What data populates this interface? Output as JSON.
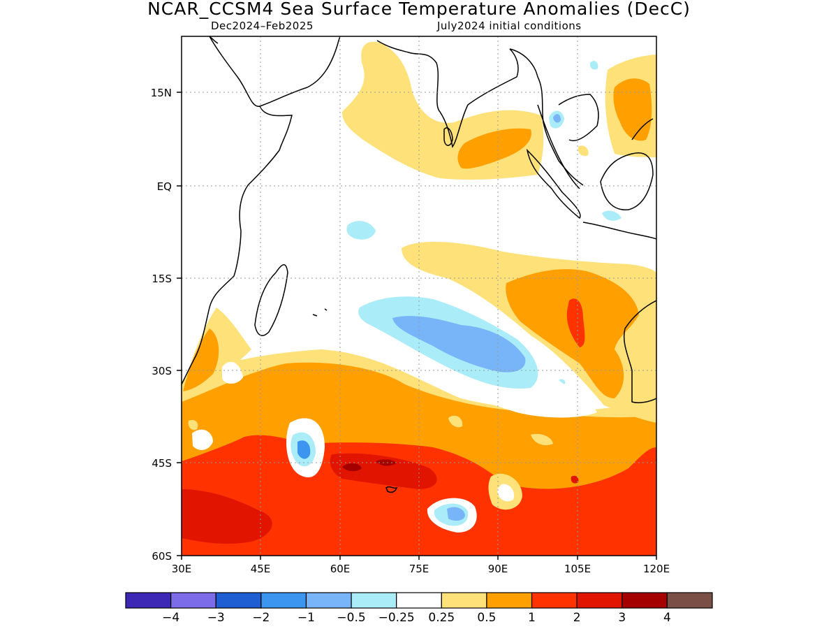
{
  "title": "NCAR_CCSM4 Sea Surface Temperature Anomalies (DecC)",
  "subtitle_left": "Dec2024–Feb2025",
  "subtitle_right": "July2024 initial conditions",
  "map": {
    "region": "Indian Ocean",
    "lon_range": [
      30,
      120
    ],
    "lat_range": [
      -60,
      22
    ],
    "grid": true,
    "lon_ticks": [
      "30E",
      "45E",
      "60E",
      "75E",
      "90E",
      "105E",
      "120E"
    ],
    "lat_ticks": [
      "15N",
      "EQ",
      "15S",
      "30S",
      "45S",
      "60S"
    ]
  },
  "chart_data": {
    "type": "heatmap",
    "variable": "Sea Surface Temperature Anomalies",
    "units": "DecC",
    "colorbar": {
      "colors": [
        "#3c28b4",
        "#7c6ce8",
        "#1e5ed2",
        "#3c96f0",
        "#78b4f8",
        "#aaecf8",
        "#ffffff",
        "#ffe17a",
        "#ffa000",
        "#ff3200",
        "#e11400",
        "#a50000",
        "#7a4f45"
      ],
      "tick_labels": [
        "−4",
        "−3",
        "−2",
        "−1",
        "−0.5",
        "−0.25",
        "0.25",
        "0.5",
        "1",
        "2",
        "3",
        "4"
      ]
    }
  }
}
